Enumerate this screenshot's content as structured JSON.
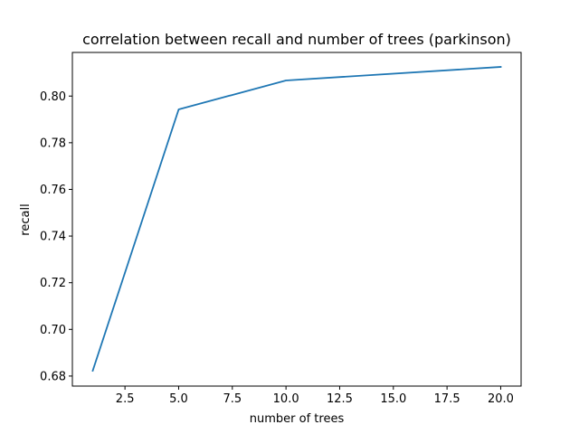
{
  "chart_data": {
    "type": "line",
    "title": "correlation between recall and number of trees (parkinson)",
    "xlabel": "number of trees",
    "ylabel": "recall",
    "xlim": [
      0.05,
      20.95
    ],
    "ylim": [
      0.6757,
      0.8187
    ],
    "grid": false,
    "legend": "none",
    "x_ticks": [
      2.5,
      5.0,
      7.5,
      10.0,
      12.5,
      15.0,
      17.5,
      20.0
    ],
    "x_tick_labels": [
      "2.5",
      "5.0",
      "7.5",
      "10.0",
      "12.5",
      "15.0",
      "17.5",
      "20.0"
    ],
    "y_ticks": [
      0.68,
      0.7,
      0.72,
      0.74,
      0.76,
      0.78,
      0.8
    ],
    "y_tick_labels": [
      "0.68",
      "0.70",
      "0.72",
      "0.74",
      "0.76",
      "0.78",
      "0.80"
    ],
    "series": [
      {
        "x": [
          1,
          5,
          10,
          20
        ],
        "y": [
          0.6823,
          0.7943,
          0.8067,
          0.8125
        ],
        "color": "#1f77b4"
      }
    ]
  }
}
